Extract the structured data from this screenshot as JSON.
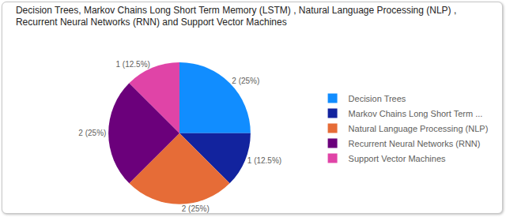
{
  "chart_data": {
    "type": "pie",
    "title": "Decision Trees, Markov Chains Long Short Term Memory (LSTM) , Natural Language Processing (NLP) , Recurrent Neural Networks (RNN) and Support Vector Machines",
    "categories": [
      "Decision Trees",
      "Markov Chains Long Short Term ...",
      "Natural Language Processing (NLP)",
      "Recurrent Neural Networks (RNN)",
      "Support Vector Machines"
    ],
    "values": [
      2,
      1,
      2,
      2,
      1
    ],
    "value_labels": [
      "2 (25%)",
      "1 (12.5%)",
      "2 (25%)",
      "2 (25%)",
      "1 (12.5%)"
    ],
    "colors": [
      "#118dff",
      "#12239e",
      "#e66c37",
      "#6b007b",
      "#e044a7"
    ],
    "data_labels": true,
    "legend": "right"
  }
}
